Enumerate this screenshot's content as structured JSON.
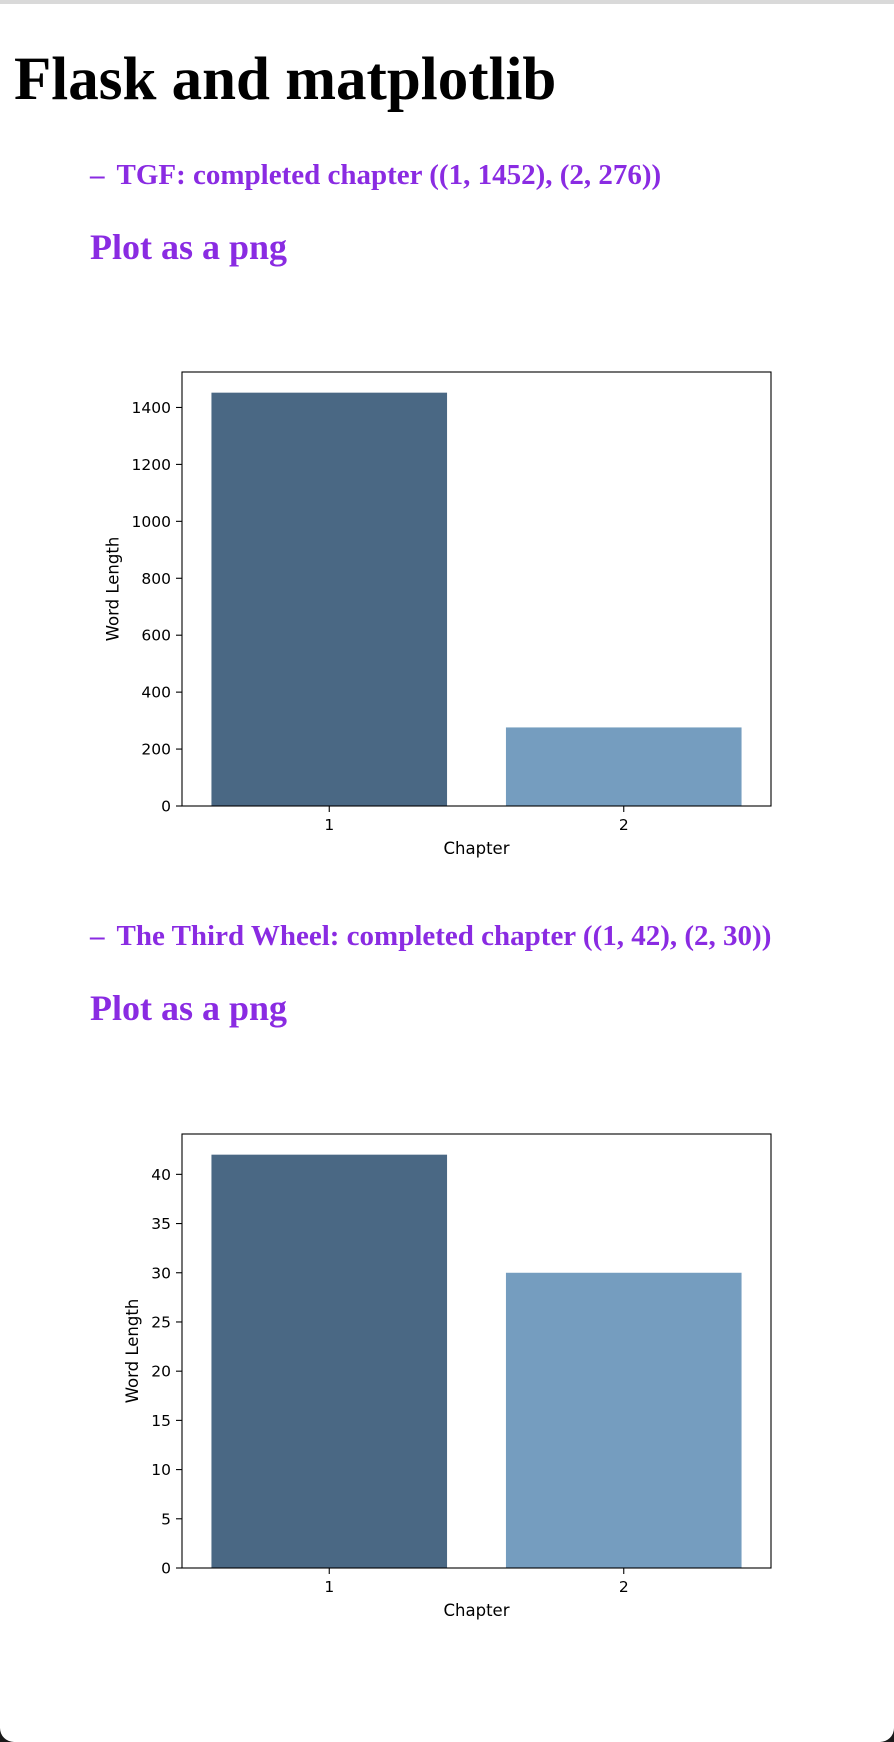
{
  "page": {
    "title": "Flask and matplotlib",
    "accent_color": "#8a2be2"
  },
  "sections": [
    {
      "dash": "–",
      "line_text": "TGF: completed chapter ((1, 1452), (2, 276))",
      "plot_heading": "Plot as a png"
    },
    {
      "dash": "–",
      "line_text": "The Third Wheel: completed chapter ((1, 42), (2, 30))",
      "plot_heading": "Plot as a png"
    }
  ],
  "chart_data": [
    {
      "type": "bar",
      "categories": [
        "1",
        "2"
      ],
      "values": [
        1452,
        276
      ],
      "colors": [
        "#4a6884",
        "#759dbf"
      ],
      "xlabel": "Chapter",
      "ylabel": "Word Length",
      "ylim": [
        0,
        1524.6
      ],
      "yticks": [
        0,
        200,
        400,
        600,
        800,
        1000,
        1200,
        1400
      ],
      "grid": false,
      "legend": "none"
    },
    {
      "type": "bar",
      "categories": [
        "1",
        "2"
      ],
      "values": [
        42,
        30
      ],
      "colors": [
        "#4a6884",
        "#759dbf"
      ],
      "xlabel": "Chapter",
      "ylabel": "Word Length",
      "ylim": [
        0,
        44.1
      ],
      "yticks": [
        0,
        5,
        10,
        15,
        20,
        25,
        30,
        35,
        40
      ],
      "grid": false,
      "legend": "none"
    }
  ]
}
